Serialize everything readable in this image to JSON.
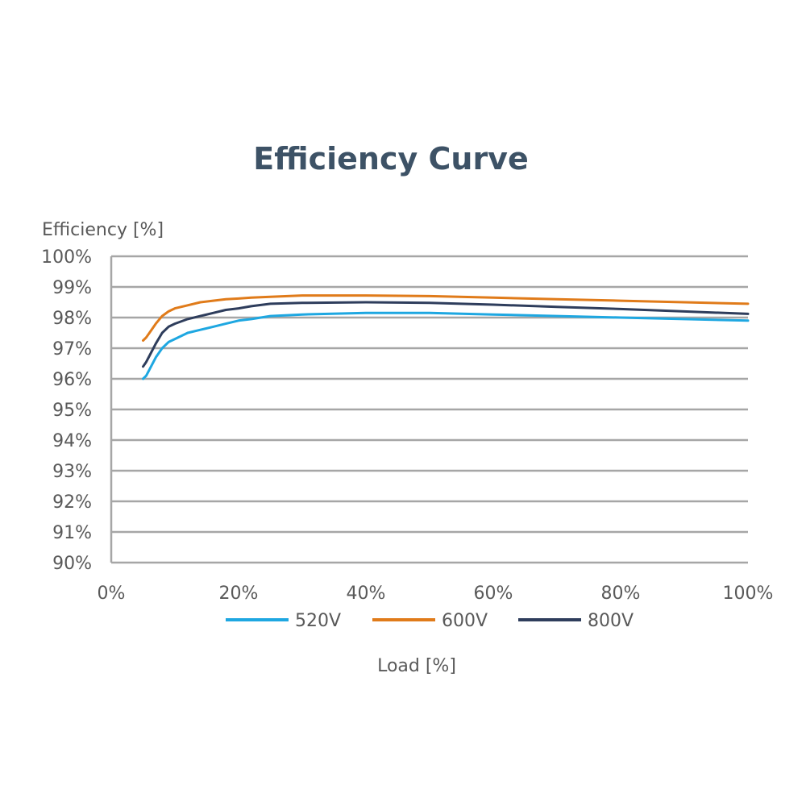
{
  "chart_data": {
    "type": "line",
    "title": "Efficiency Curve",
    "ylabel": "Efficiency [%]",
    "xlabel": "Load [%]",
    "xlim": [
      0,
      100
    ],
    "ylim": [
      90,
      100
    ],
    "x_ticks": [
      0,
      20,
      40,
      60,
      80,
      100
    ],
    "x_tick_labels": [
      "0%",
      "20%",
      "40%",
      "60%",
      "80%",
      "100%"
    ],
    "y_ticks": [
      90,
      91,
      92,
      93,
      94,
      95,
      96,
      97,
      98,
      99,
      100
    ],
    "y_tick_labels": [
      "90%",
      "91%",
      "92%",
      "93%",
      "94%",
      "95%",
      "96%",
      "97%",
      "98%",
      "99%",
      "100%"
    ],
    "grid": "horizontal",
    "legend_position": "bottom",
    "series": [
      {
        "name": "520V",
        "color": "#1ea7e1",
        "x": [
          5,
          5.5,
          6,
          7,
          8,
          9,
          10,
          12,
          14,
          16,
          18,
          20,
          22,
          25,
          30,
          40,
          50,
          60,
          70,
          80,
          90,
          100
        ],
        "values": [
          96.0,
          96.1,
          96.3,
          96.7,
          97.0,
          97.2,
          97.3,
          97.5,
          97.6,
          97.7,
          97.8,
          97.9,
          97.95,
          98.05,
          98.1,
          98.15,
          98.15,
          98.1,
          98.05,
          98.0,
          97.95,
          97.9
        ]
      },
      {
        "name": "600V",
        "color": "#e07b1a",
        "x": [
          5,
          5.5,
          6,
          7,
          8,
          9,
          10,
          12,
          14,
          16,
          18,
          20,
          22,
          25,
          30,
          40,
          50,
          60,
          70,
          80,
          90,
          100
        ],
        "values": [
          97.25,
          97.35,
          97.5,
          97.8,
          98.05,
          98.2,
          98.3,
          98.4,
          98.5,
          98.55,
          98.6,
          98.62,
          98.65,
          98.68,
          98.72,
          98.72,
          98.7,
          98.65,
          98.6,
          98.55,
          98.5,
          98.45
        ]
      },
      {
        "name": "800V",
        "color": "#2e3d5c",
        "x": [
          5,
          5.5,
          6,
          7,
          8,
          9,
          10,
          12,
          14,
          16,
          18,
          20,
          22,
          25,
          30,
          40,
          50,
          60,
          70,
          80,
          90,
          100
        ],
        "values": [
          96.4,
          96.55,
          96.75,
          97.15,
          97.5,
          97.7,
          97.8,
          97.95,
          98.05,
          98.15,
          98.25,
          98.3,
          98.37,
          98.45,
          98.48,
          98.5,
          98.48,
          98.42,
          98.35,
          98.28,
          98.2,
          98.12
        ]
      }
    ]
  },
  "colors": {
    "title": "#3d5266",
    "grid": "#a6a6a6",
    "axis_text": "#595959"
  }
}
